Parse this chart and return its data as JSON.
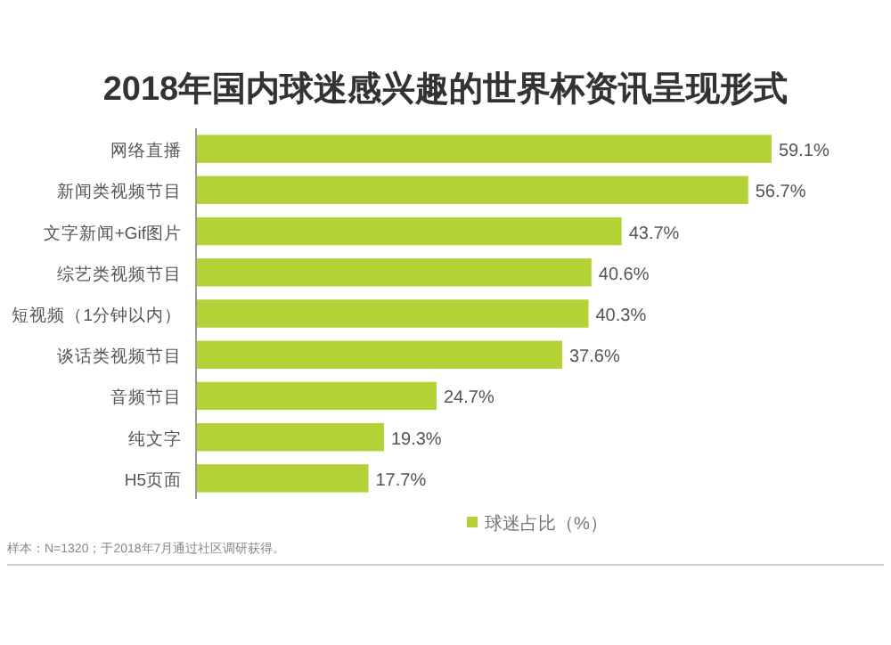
{
  "chart_data": {
    "type": "bar",
    "orientation": "horizontal",
    "title": "2018年国内球迷感兴趣的世界杯资讯呈现形式",
    "categories": [
      "网络直播",
      "新闻类视频节目",
      "文字新闻+Gif图片",
      "综艺类视频节目",
      "短视频（1分钟以内）",
      "谈话类视频节目",
      "音频节目",
      "纯文字",
      "H5页面"
    ],
    "series": [
      {
        "name": "球迷占比（%）",
        "color": "#b3d235",
        "values": [
          59.1,
          56.7,
          43.7,
          40.6,
          40.3,
          37.6,
          24.7,
          19.3,
          17.7
        ],
        "value_labels": [
          "59.1%",
          "56.7%",
          "43.7%",
          "40.6%",
          "40.3%",
          "37.6%",
          "24.7%",
          "19.3%",
          "17.7%"
        ]
      }
    ],
    "legend": "bottom",
    "annotations": [
      "样本：N=1320；于2018年7月通过社区调研获得。"
    ]
  }
}
